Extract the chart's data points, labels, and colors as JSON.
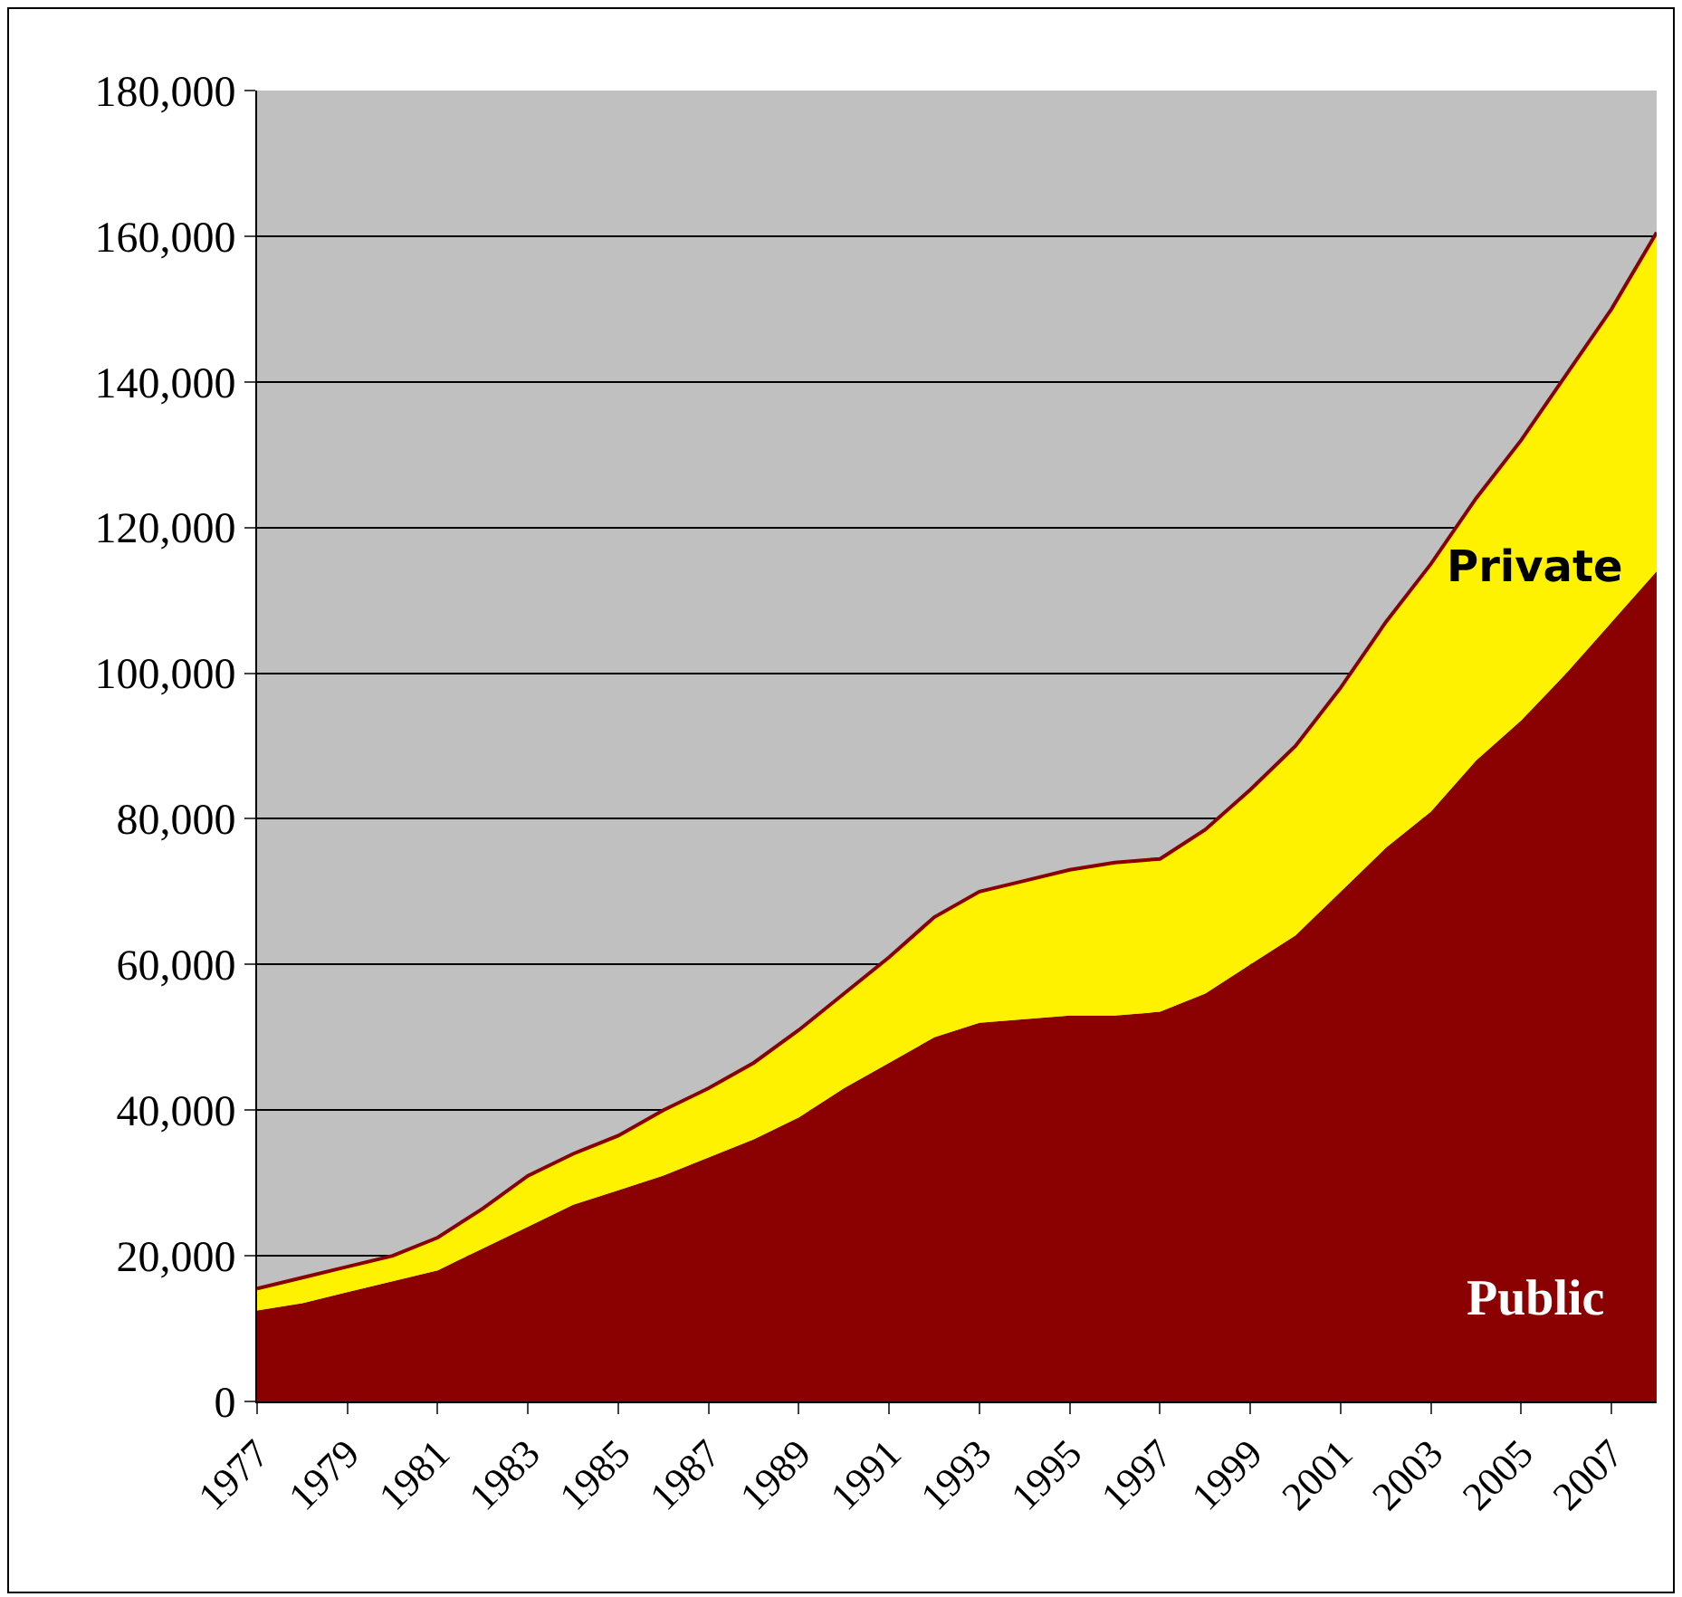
{
  "chart_data": {
    "type": "area",
    "stacked": true,
    "legend": false,
    "grid": "y",
    "categories": [
      "1977",
      null,
      "1979",
      null,
      "1981",
      null,
      "1983",
      null,
      "1985",
      null,
      "1987",
      null,
      "1989",
      null,
      "1991",
      null,
      "1993",
      null,
      "1995",
      null,
      "1997",
      null,
      "1999",
      null,
      "2001",
      null,
      "2003",
      null,
      "2005",
      null,
      "2007",
      null
    ],
    "series": [
      {
        "name": "Public",
        "color": "#8b0000",
        "values": [
          12500,
          13500,
          15000,
          16500,
          18000,
          21000,
          24000,
          27000,
          29000,
          31000,
          33500,
          36000,
          39000,
          43000,
          46500,
          50000,
          52000,
          52500,
          53000,
          53000,
          53500,
          56000,
          60000,
          64000,
          70000,
          76000,
          81000,
          88000,
          93500,
          100000,
          107000,
          114000
        ]
      },
      {
        "name": "Private",
        "color": "#fff200",
        "values": [
          3000,
          3500,
          3500,
          3500,
          4500,
          5500,
          7000,
          7000,
          7500,
          9000,
          9500,
          10500,
          12000,
          13000,
          14500,
          16500,
          18000,
          19000,
          20000,
          21000,
          21000,
          22500,
          24000,
          26000,
          28000,
          31000,
          34000,
          36000,
          38500,
          41000,
          43000,
          46500
        ]
      }
    ],
    "ylim": [
      0,
      180000
    ],
    "yticks": [
      0,
      {
        "value": 20000,
        "label": "20,000"
      },
      {
        "value": 40000,
        "label": "40,000"
      },
      {
        "value": 60000,
        "label": "60,000"
      },
      {
        "value": 80000,
        "label": "80,000"
      },
      {
        "value": 100000,
        "label": "100,000"
      },
      {
        "value": 120000,
        "label": "120,000"
      },
      {
        "value": 140000,
        "label": "140,000"
      },
      {
        "value": 160000,
        "label": "160,000"
      },
      {
        "value": 180000,
        "label": "180,000"
      }
    ]
  }
}
